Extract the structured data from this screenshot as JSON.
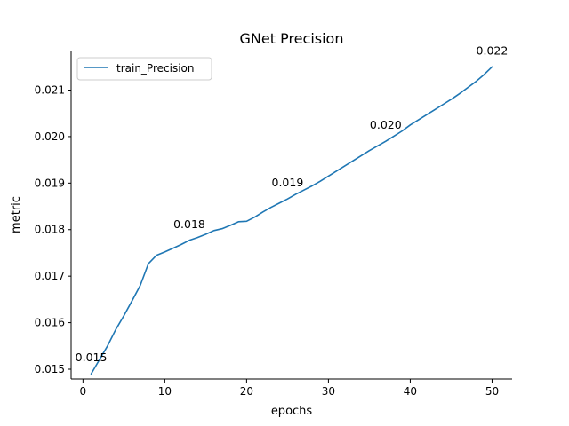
{
  "chart_data": {
    "type": "line",
    "title": "GNet Precision",
    "xlabel": "epochs",
    "ylabel": "metric",
    "xlim": [
      -1.45,
      52.45
    ],
    "ylim": [
      0.01479,
      0.02183
    ],
    "xticks": [
      0,
      10,
      20,
      30,
      40,
      50
    ],
    "xtick_labels": [
      "0",
      "10",
      "20",
      "30",
      "40",
      "50"
    ],
    "yticks": [
      0.015,
      0.016,
      0.017,
      0.018,
      0.019,
      0.02,
      0.021
    ],
    "ytick_labels": [
      "0.015",
      "0.016",
      "0.017",
      "0.018",
      "0.019",
      "0.020",
      "0.021"
    ],
    "grid": false,
    "legend_position": "upper left",
    "series": [
      {
        "name": "train_Precision",
        "color": "#1f77b4",
        "x": [
          1,
          2,
          3,
          4,
          5,
          6,
          7,
          8,
          9,
          10,
          11,
          12,
          13,
          14,
          15,
          16,
          17,
          18,
          19,
          20,
          21,
          22,
          23,
          24,
          25,
          26,
          27,
          28,
          29,
          30,
          31,
          32,
          33,
          34,
          35,
          36,
          37,
          38,
          39,
          40,
          41,
          42,
          43,
          44,
          45,
          46,
          47,
          48,
          49,
          50
        ],
        "values": [
          0.0149,
          0.0152,
          0.0155,
          0.01585,
          0.01615,
          0.01647,
          0.0168,
          0.01727,
          0.01745,
          0.01752,
          0.0176,
          0.01768,
          0.01777,
          0.01783,
          0.0179,
          0.01798,
          0.01802,
          0.01809,
          0.01817,
          0.01818,
          0.01827,
          0.01838,
          0.01848,
          0.01857,
          0.01866,
          0.01876,
          0.01885,
          0.01894,
          0.01904,
          0.01915,
          0.01926,
          0.01937,
          0.01948,
          0.01959,
          0.0197,
          0.0198,
          0.0199,
          0.02001,
          0.02012,
          0.02025,
          0.02036,
          0.02047,
          0.02058,
          0.02069,
          0.0208,
          0.02092,
          0.02105,
          0.02118,
          0.02133,
          0.0215
        ]
      }
    ],
    "annotations": [
      {
        "x": 1,
        "y": 0.0149,
        "text": "0.015"
      },
      {
        "x": 13,
        "y": 0.01777,
        "text": "0.018"
      },
      {
        "x": 25,
        "y": 0.01866,
        "text": "0.019"
      },
      {
        "x": 37,
        "y": 0.0199,
        "text": "0.020"
      },
      {
        "x": 50,
        "y": 0.0215,
        "text": "0.022"
      }
    ]
  }
}
